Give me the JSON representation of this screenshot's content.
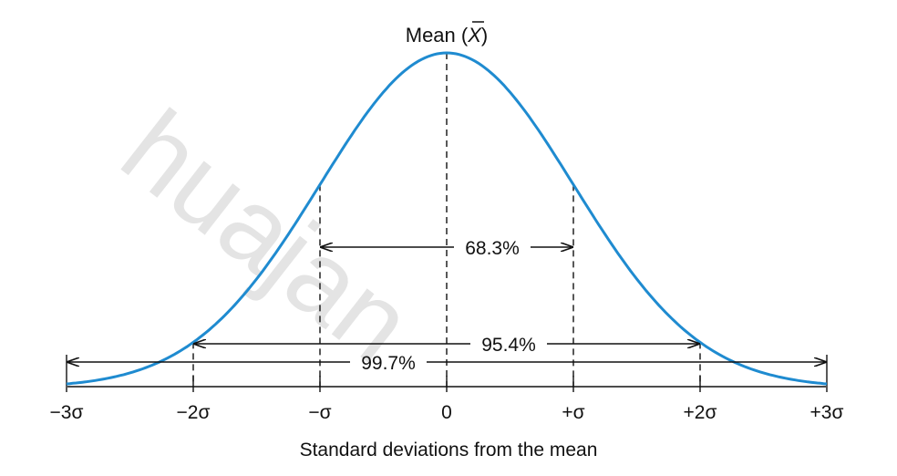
{
  "mean_label": "Mean (X)",
  "mean_label_parts": {
    "before": "Mean (",
    "symbol": "X",
    "after": ")"
  },
  "axis_title": "Standard deviations from the mean",
  "tick_labels": [
    "−3σ",
    "−2σ",
    "−σ",
    "0",
    "+σ",
    "+2σ",
    "+3σ"
  ],
  "intervals": [
    {
      "label": "68.3%",
      "from_sd": -1,
      "to_sd": 1
    },
    {
      "label": "95.4%",
      "from_sd": -2,
      "to_sd": 2
    },
    {
      "label": "99.7%",
      "from_sd": -3,
      "to_sd": 3
    }
  ],
  "watermark_text": "huajan",
  "colors": {
    "curve": "#1f8bd0",
    "lines": "#111111",
    "watermark": "#cfcfcf"
  }
}
